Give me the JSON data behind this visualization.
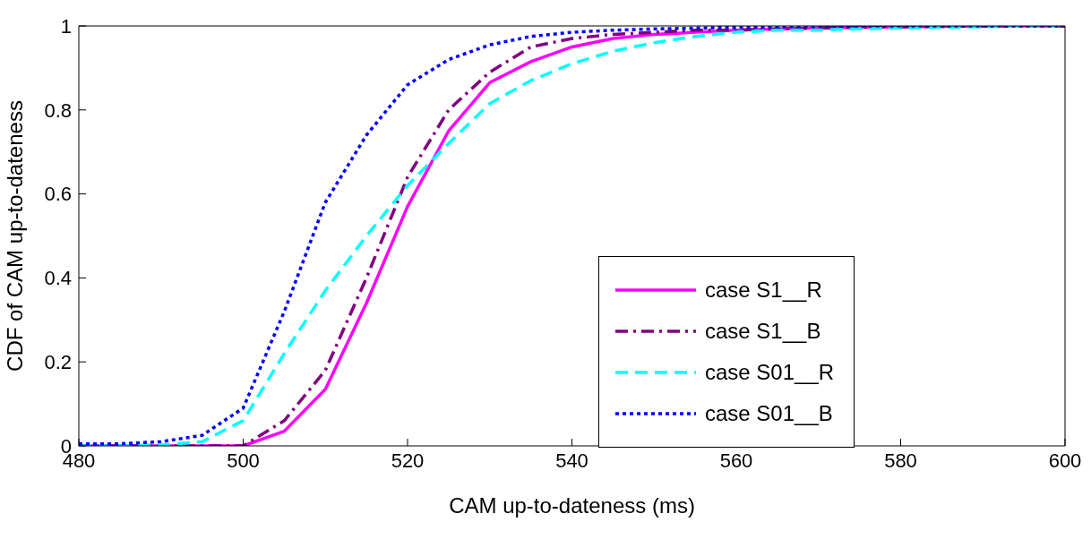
{
  "chart_data": {
    "type": "line",
    "xlabel": "CAM up-to-dateness (ms)",
    "ylabel": "CDF of CAM up-to-dateness",
    "x": [
      480,
      485,
      490,
      495,
      500,
      505,
      510,
      515,
      520,
      525,
      530,
      535,
      540,
      545,
      550,
      555,
      560,
      565,
      570,
      575,
      580,
      585,
      590,
      595,
      600
    ],
    "series": [
      {
        "name": "case S1__R",
        "color": "#ff00ff",
        "line_style": "solid",
        "values": [
          0,
          0,
          0,
          0,
          0,
          0.035,
          0.135,
          0.34,
          0.57,
          0.75,
          0.865,
          0.915,
          0.95,
          0.97,
          0.98,
          0.985,
          0.99,
          0.993,
          0.995,
          0.997,
          0.998,
          0.999,
          1,
          1,
          1
        ]
      },
      {
        "name": "case S1__B",
        "color": "#800080",
        "line_style": "dashdot",
        "values": [
          0,
          0,
          0,
          0,
          0,
          0.06,
          0.18,
          0.4,
          0.64,
          0.8,
          0.89,
          0.95,
          0.97,
          0.98,
          0.985,
          0.99,
          0.99,
          0.993,
          0.995,
          0.997,
          0.998,
          0.999,
          1,
          1,
          1
        ]
      },
      {
        "name": "case S01__R",
        "color": "#00ffff",
        "line_style": "dashed",
        "values": [
          0,
          0,
          0.002,
          0.01,
          0.06,
          0.22,
          0.37,
          0.5,
          0.62,
          0.72,
          0.815,
          0.87,
          0.91,
          0.94,
          0.96,
          0.975,
          0.985,
          0.99,
          0.99,
          0.993,
          0.995,
          0.997,
          0.998,
          1,
          1
        ]
      },
      {
        "name": "case S01__B",
        "color": "#0000ff",
        "line_style": "dotted",
        "values": [
          0.005,
          0.005,
          0.01,
          0.025,
          0.09,
          0.32,
          0.58,
          0.74,
          0.86,
          0.92,
          0.955,
          0.975,
          0.985,
          0.99,
          0.993,
          0.995,
          0.997,
          0.998,
          0.999,
          1,
          1,
          1,
          1,
          1,
          1
        ]
      }
    ],
    "xlim": [
      480,
      600
    ],
    "xticks": [
      480,
      500,
      520,
      540,
      560,
      580,
      600
    ],
    "ylim": [
      0,
      1
    ],
    "yticks": [
      0,
      0.2,
      0.4,
      0.6,
      0.8,
      1
    ],
    "grid": false,
    "legend": "right",
    "marker": "none"
  }
}
